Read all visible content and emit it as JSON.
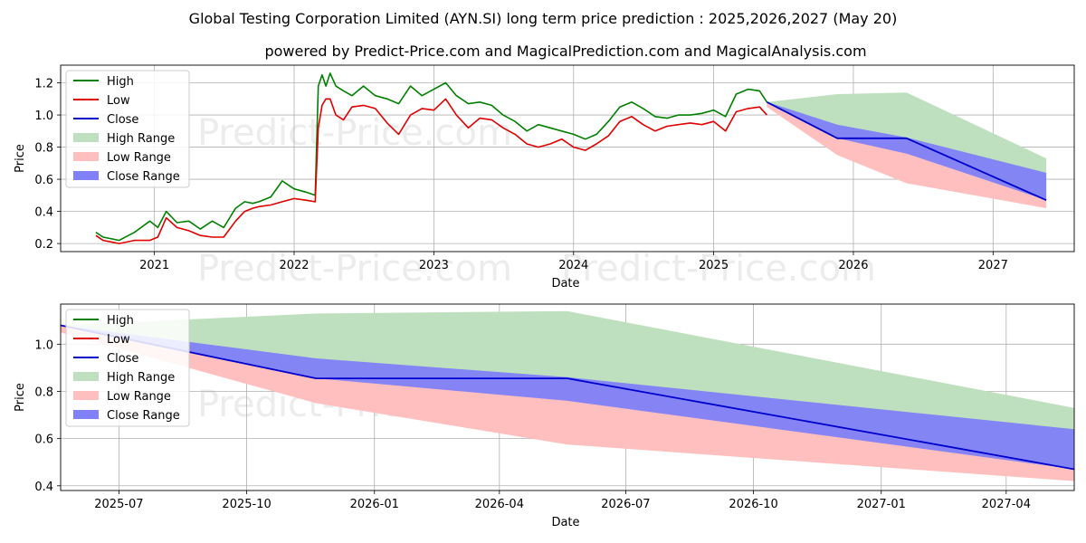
{
  "title": "Global Testing Corporation Limited (AYN.SI) long term price prediction : 2025,2026,2027 (May 20)",
  "subtitle": "powered by Predict-Price.com and MagicalPrediction.com and MagicalAnalysis.com",
  "watermark": "Predict-Price.com",
  "colors": {
    "high": "#008000",
    "low": "#e00000",
    "close": "#0000cc",
    "high_range": "#bfe0bf",
    "low_range": "#ffbfbf",
    "close_range": "#8080f8",
    "grid": "#b0b0b0"
  },
  "chart_data": [
    {
      "type": "line",
      "xlabel": "Date",
      "ylabel": "Price",
      "xlim": [
        "2020-05-01",
        "2027-08-01"
      ],
      "ylim": [
        0.15,
        1.31
      ],
      "grid": true,
      "legend_position": "top-left",
      "x_ticks": [
        {
          "value": "2021-01-01",
          "label": "2021"
        },
        {
          "value": "2022-01-01",
          "label": "2022"
        },
        {
          "value": "2023-01-01",
          "label": "2023"
        },
        {
          "value": "2024-01-01",
          "label": "2024"
        },
        {
          "value": "2025-01-01",
          "label": "2025"
        },
        {
          "value": "2026-01-01",
          "label": "2026"
        },
        {
          "value": "2027-01-01",
          "label": "2027"
        }
      ],
      "y_ticks": [
        0.2,
        0.4,
        0.6,
        0.8,
        1.0,
        1.2
      ],
      "legend": [
        "High",
        "Low",
        "Close",
        "High Range",
        "Low Range",
        "Close Range"
      ],
      "series": [
        {
          "name": "High",
          "x": [
            "2020-08-01",
            "2020-08-20",
            "2020-10-01",
            "2020-11-10",
            "2020-12-20",
            "2021-01-10",
            "2021-02-01",
            "2021-03-01",
            "2021-04-01",
            "2021-05-01",
            "2021-06-01",
            "2021-07-01",
            "2021-08-01",
            "2021-08-25",
            "2021-09-15",
            "2021-10-01",
            "2021-11-01",
            "2021-12-01",
            "2022-01-01",
            "2022-02-01",
            "2022-02-25",
            "2022-03-05",
            "2022-03-15",
            "2022-03-25",
            "2022-04-05",
            "2022-04-20",
            "2022-05-10",
            "2022-06-01",
            "2022-07-01",
            "2022-08-01",
            "2022-09-01",
            "2022-10-01",
            "2022-11-01",
            "2022-12-01",
            "2023-01-01",
            "2023-02-01",
            "2023-03-01",
            "2023-04-01",
            "2023-05-01",
            "2023-06-01",
            "2023-07-01",
            "2023-08-01",
            "2023-09-01",
            "2023-10-01",
            "2023-11-01",
            "2023-12-01",
            "2024-01-01",
            "2024-02-01",
            "2024-03-01",
            "2024-04-01",
            "2024-05-01",
            "2024-06-01",
            "2024-07-01",
            "2024-08-01",
            "2024-09-01",
            "2024-10-01",
            "2024-11-01",
            "2024-12-01",
            "2025-01-01",
            "2025-02-01",
            "2025-03-01",
            "2025-04-01",
            "2025-05-01",
            "2025-05-20"
          ],
          "values": [
            0.27,
            0.24,
            0.22,
            0.27,
            0.34,
            0.3,
            0.4,
            0.33,
            0.34,
            0.29,
            0.34,
            0.3,
            0.42,
            0.46,
            0.45,
            0.46,
            0.49,
            0.59,
            0.54,
            0.52,
            0.5,
            1.18,
            1.25,
            1.18,
            1.26,
            1.18,
            1.15,
            1.12,
            1.18,
            1.12,
            1.1,
            1.07,
            1.18,
            1.12,
            1.16,
            1.2,
            1.12,
            1.07,
            1.08,
            1.06,
            1.0,
            0.96,
            0.9,
            0.94,
            0.92,
            0.9,
            0.88,
            0.85,
            0.88,
            0.96,
            1.05,
            1.08,
            1.04,
            0.99,
            0.98,
            1.0,
            1.0,
            1.01,
            1.03,
            0.99,
            1.13,
            1.16,
            1.15,
            1.08
          ]
        },
        {
          "name": "Low",
          "x": [
            "2020-08-01",
            "2020-08-20",
            "2020-10-01",
            "2020-11-10",
            "2020-12-20",
            "2021-01-10",
            "2021-02-01",
            "2021-03-01",
            "2021-04-01",
            "2021-05-01",
            "2021-06-01",
            "2021-07-01",
            "2021-08-01",
            "2021-08-25",
            "2021-09-15",
            "2021-10-01",
            "2021-11-01",
            "2021-12-01",
            "2022-01-01",
            "2022-02-01",
            "2022-02-25",
            "2022-03-05",
            "2022-03-15",
            "2022-03-25",
            "2022-04-05",
            "2022-04-20",
            "2022-05-10",
            "2022-06-01",
            "2022-07-01",
            "2022-08-01",
            "2022-09-01",
            "2022-10-01",
            "2022-11-01",
            "2022-12-01",
            "2023-01-01",
            "2023-02-01",
            "2023-03-01",
            "2023-04-01",
            "2023-05-01",
            "2023-06-01",
            "2023-07-01",
            "2023-08-01",
            "2023-09-01",
            "2023-10-01",
            "2023-11-01",
            "2023-12-01",
            "2024-01-01",
            "2024-02-01",
            "2024-03-01",
            "2024-04-01",
            "2024-05-01",
            "2024-06-01",
            "2024-07-01",
            "2024-08-01",
            "2024-09-01",
            "2024-10-01",
            "2024-11-01",
            "2024-12-01",
            "2025-01-01",
            "2025-02-01",
            "2025-03-01",
            "2025-04-01",
            "2025-05-01",
            "2025-05-20"
          ],
          "values": [
            0.25,
            0.22,
            0.2,
            0.22,
            0.22,
            0.24,
            0.36,
            0.3,
            0.28,
            0.25,
            0.24,
            0.24,
            0.34,
            0.4,
            0.42,
            0.43,
            0.44,
            0.46,
            0.48,
            0.47,
            0.46,
            0.92,
            1.06,
            1.1,
            1.1,
            1.0,
            0.97,
            1.05,
            1.06,
            1.04,
            0.95,
            0.88,
            1.0,
            1.04,
            1.03,
            1.1,
            1.0,
            0.92,
            0.98,
            0.97,
            0.92,
            0.88,
            0.82,
            0.8,
            0.82,
            0.85,
            0.8,
            0.78,
            0.82,
            0.87,
            0.96,
            0.99,
            0.94,
            0.9,
            0.93,
            0.94,
            0.95,
            0.94,
            0.96,
            0.9,
            1.02,
            1.04,
            1.05,
            1.0
          ]
        },
        {
          "name": "Close",
          "x": [
            "2025-05-20",
            "2025-11-20",
            "2026-05-20",
            "2027-05-20"
          ],
          "values": [
            1.08,
            0.855,
            0.855,
            0.47
          ]
        },
        {
          "name": "High Range",
          "x": [
            "2025-05-20",
            "2025-11-20",
            "2026-05-20",
            "2027-05-20"
          ],
          "lower": [
            1.08,
            0.855,
            0.855,
            0.47
          ],
          "upper": [
            1.08,
            1.13,
            1.14,
            0.73
          ]
        },
        {
          "name": "Low Range",
          "x": [
            "2025-05-20",
            "2025-11-20",
            "2026-05-20",
            "2027-05-20"
          ],
          "lower": [
            1.05,
            0.75,
            0.575,
            0.42
          ],
          "upper": [
            1.08,
            0.855,
            0.855,
            0.47
          ]
        },
        {
          "name": "Close Range",
          "x": [
            "2025-05-20",
            "2025-11-20",
            "2026-05-20",
            "2027-05-20"
          ],
          "lower": [
            1.08,
            0.855,
            0.76,
            0.47
          ],
          "upper": [
            1.08,
            0.94,
            0.86,
            0.64
          ]
        }
      ]
    },
    {
      "type": "line",
      "xlabel": "Date",
      "ylabel": "Price",
      "xlim": [
        "2025-05-20",
        "2027-05-20"
      ],
      "ylim": [
        0.38,
        1.17
      ],
      "grid": true,
      "legend_position": "top-left",
      "x_ticks": [
        {
          "value": "2025-07-01",
          "label": "2025-07"
        },
        {
          "value": "2025-10-01",
          "label": "2025-10"
        },
        {
          "value": "2026-01-01",
          "label": "2026-01"
        },
        {
          "value": "2026-04-01",
          "label": "2026-04"
        },
        {
          "value": "2026-07-01",
          "label": "2026-07"
        },
        {
          "value": "2026-10-01",
          "label": "2026-10"
        },
        {
          "value": "2027-01-01",
          "label": "2027-01"
        },
        {
          "value": "2027-04-01",
          "label": "2027-04"
        }
      ],
      "y_ticks": [
        0.4,
        0.6,
        0.8,
        1.0
      ],
      "legend": [
        "High",
        "Low",
        "Close",
        "High Range",
        "Low Range",
        "Close Range"
      ],
      "series": [
        {
          "name": "Close",
          "x": [
            "2025-05-20",
            "2025-11-20",
            "2026-05-20",
            "2027-05-20"
          ],
          "values": [
            1.08,
            0.855,
            0.855,
            0.47
          ]
        },
        {
          "name": "High Range",
          "x": [
            "2025-05-20",
            "2025-11-20",
            "2026-05-20",
            "2027-05-20"
          ],
          "lower": [
            1.08,
            0.855,
            0.855,
            0.47
          ],
          "upper": [
            1.08,
            1.13,
            1.14,
            0.73
          ]
        },
        {
          "name": "Low Range",
          "x": [
            "2025-05-20",
            "2025-11-20",
            "2026-05-20",
            "2027-05-20"
          ],
          "lower": [
            1.05,
            0.75,
            0.575,
            0.42
          ],
          "upper": [
            1.08,
            0.855,
            0.855,
            0.47
          ]
        },
        {
          "name": "Close Range",
          "x": [
            "2025-05-20",
            "2025-11-20",
            "2026-05-20",
            "2027-05-20"
          ],
          "lower": [
            1.08,
            0.855,
            0.76,
            0.47
          ],
          "upper": [
            1.08,
            0.94,
            0.86,
            0.64
          ]
        }
      ]
    }
  ]
}
